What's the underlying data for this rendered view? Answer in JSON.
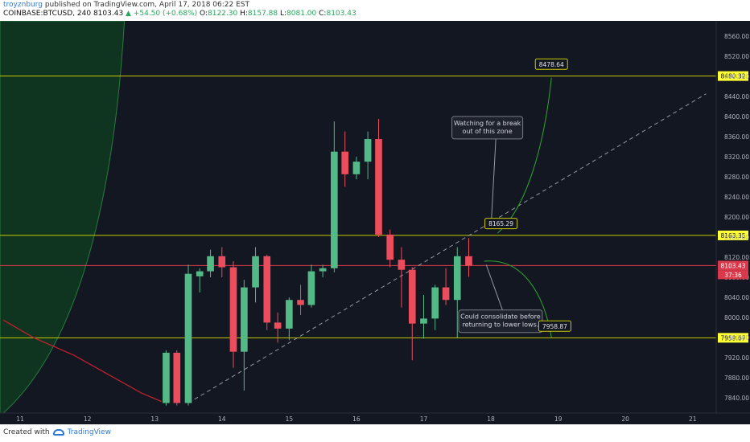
{
  "header": {
    "user": "troyznburg",
    "published": "published on TradingView.com, April 17, 2018 06:22 EST",
    "symbol": "COINBASE:BTCUSD, 240",
    "last": "8103.43",
    "change": "▲ +54.50 (+0.68%)",
    "o_label": "O:",
    "o": "8122.30",
    "h_label": "H:",
    "h": "8157.88",
    "l_label": "L:",
    "l": "8081.00",
    "c_label": "C:",
    "c": "8103.43"
  },
  "footer": {
    "created_with": "Created with",
    "brand": "TradingView"
  },
  "colors": {
    "background": "#131722",
    "up": "#53b987",
    "down": "#eb4d5c",
    "hline": "#c8c800",
    "price_line": "#d9394b",
    "curve": "#2ea82e",
    "ma": "#c0212e",
    "zone": "#0f3520"
  },
  "chart_data": {
    "type": "candlestick",
    "ylim": [
      7810,
      8590
    ],
    "xlim": [
      10.7,
      21.35
    ],
    "y_ticks": [
      "7840.00",
      "7880.00",
      "7920.00",
      "7960.00",
      "8000.00",
      "8040.00",
      "8080.00",
      "8120.00",
      "8160.00",
      "8200.00",
      "8240.00",
      "8280.00",
      "8320.00",
      "8360.00",
      "8400.00",
      "8440.00",
      "8480.00",
      "8520.00",
      "8560.00"
    ],
    "x_ticks": [
      {
        "label": "11",
        "x": 11
      },
      {
        "label": "12",
        "x": 12
      },
      {
        "label": "13",
        "x": 13
      },
      {
        "label": "14",
        "x": 14
      },
      {
        "label": "15",
        "x": 15
      },
      {
        "label": "16",
        "x": 16
      },
      {
        "label": "17",
        "x": 17
      },
      {
        "label": "18",
        "x": 18
      },
      {
        "label": "19",
        "x": 19
      },
      {
        "label": "20",
        "x": 20
      },
      {
        "label": "21",
        "x": 21
      }
    ],
    "candles": [
      {
        "t": 13.17,
        "o": 7830,
        "h": 7935,
        "l": 7825,
        "c": 7930
      },
      {
        "t": 13.33,
        "o": 7930,
        "h": 7935,
        "l": 7825,
        "c": 7830
      },
      {
        "t": 13.5,
        "o": 7830,
        "h": 8105,
        "l": 7825,
        "c": 8087
      },
      {
        "t": 13.67,
        "o": 8082,
        "h": 8098,
        "l": 8050,
        "c": 8092
      },
      {
        "t": 13.83,
        "o": 8092,
        "h": 8135,
        "l": 8080,
        "c": 8122
      },
      {
        "t": 14.0,
        "o": 8122,
        "h": 8140,
        "l": 8080,
        "c": 8100
      },
      {
        "t": 14.17,
        "o": 8100,
        "h": 8112,
        "l": 7900,
        "c": 7932
      },
      {
        "t": 14.33,
        "o": 7932,
        "h": 8075,
        "l": 7855,
        "c": 8060
      },
      {
        "t": 14.5,
        "o": 8060,
        "h": 8140,
        "l": 8030,
        "c": 8122
      },
      {
        "t": 14.67,
        "o": 8122,
        "h": 8125,
        "l": 7975,
        "c": 7990
      },
      {
        "t": 14.83,
        "o": 7990,
        "h": 8010,
        "l": 7950,
        "c": 7978
      },
      {
        "t": 15.0,
        "o": 7978,
        "h": 8040,
        "l": 7955,
        "c": 8035
      },
      {
        "t": 15.17,
        "o": 8035,
        "h": 8065,
        "l": 8005,
        "c": 8025
      },
      {
        "t": 15.33,
        "o": 8025,
        "h": 8105,
        "l": 8020,
        "c": 8092
      },
      {
        "t": 15.5,
        "o": 8092,
        "h": 8105,
        "l": 8080,
        "c": 8098
      },
      {
        "t": 15.67,
        "o": 8098,
        "h": 8390,
        "l": 8090,
        "c": 8330
      },
      {
        "t": 15.83,
        "o": 8330,
        "h": 8370,
        "l": 8260,
        "c": 8285
      },
      {
        "t": 16.0,
        "o": 8285,
        "h": 8320,
        "l": 8275,
        "c": 8310
      },
      {
        "t": 16.17,
        "o": 8310,
        "h": 8370,
        "l": 8275,
        "c": 8355
      },
      {
        "t": 16.33,
        "o": 8355,
        "h": 8395,
        "l": 8160,
        "c": 8165
      },
      {
        "t": 16.5,
        "o": 8165,
        "h": 8175,
        "l": 8100,
        "c": 8115
      },
      {
        "t": 16.67,
        "o": 8115,
        "h": 8140,
        "l": 8020,
        "c": 8095
      },
      {
        "t": 16.83,
        "o": 8095,
        "h": 8100,
        "l": 7915,
        "c": 7988
      },
      {
        "t": 17.0,
        "o": 7988,
        "h": 8045,
        "l": 7958,
        "c": 7998
      },
      {
        "t": 17.17,
        "o": 7998,
        "h": 8065,
        "l": 7975,
        "c": 8060
      },
      {
        "t": 17.33,
        "o": 8060,
        "h": 8098,
        "l": 8025,
        "c": 8035
      },
      {
        "t": 17.5,
        "o": 8035,
        "h": 8140,
        "l": 7960,
        "c": 8122
      },
      {
        "t": 17.67,
        "o": 8122,
        "h": 8158,
        "l": 8081,
        "c": 8103
      }
    ],
    "ma_line": [
      [
        10.75,
        7995
      ],
      [
        11.2,
        7960
      ],
      [
        11.8,
        7925
      ],
      [
        12.4,
        7880
      ],
      [
        12.8,
        7850
      ],
      [
        13.1,
        7833
      ]
    ],
    "trendline": [
      [
        13.5,
        7830
      ],
      [
        21.2,
        8445
      ]
    ],
    "horizontal_levels": [
      {
        "y": 8480.32,
        "label": "8480.32",
        "color": "hline"
      },
      {
        "y": 8163.35,
        "label": "8163.35",
        "color": "hline"
      },
      {
        "y": 7959.67,
        "label": "7959.67",
        "color": "hline"
      }
    ],
    "last_price": {
      "y": 8103.43,
      "label": "8103.43",
      "countdown": "37:36"
    },
    "price_callouts": [
      {
        "label": "8478.64",
        "x": 18.9,
        "y": 8504
      },
      {
        "label": "8165.29",
        "x": 18.15,
        "y": 8187
      },
      {
        "label": "7958.87",
        "x": 18.95,
        "y": 7983
      }
    ],
    "notes": [
      {
        "lines": [
          "Watching for a break",
          "out of this zone"
        ]
      },
      {
        "lines": [
          "Could consolidate before",
          "returning to lower lows."
        ]
      }
    ]
  }
}
